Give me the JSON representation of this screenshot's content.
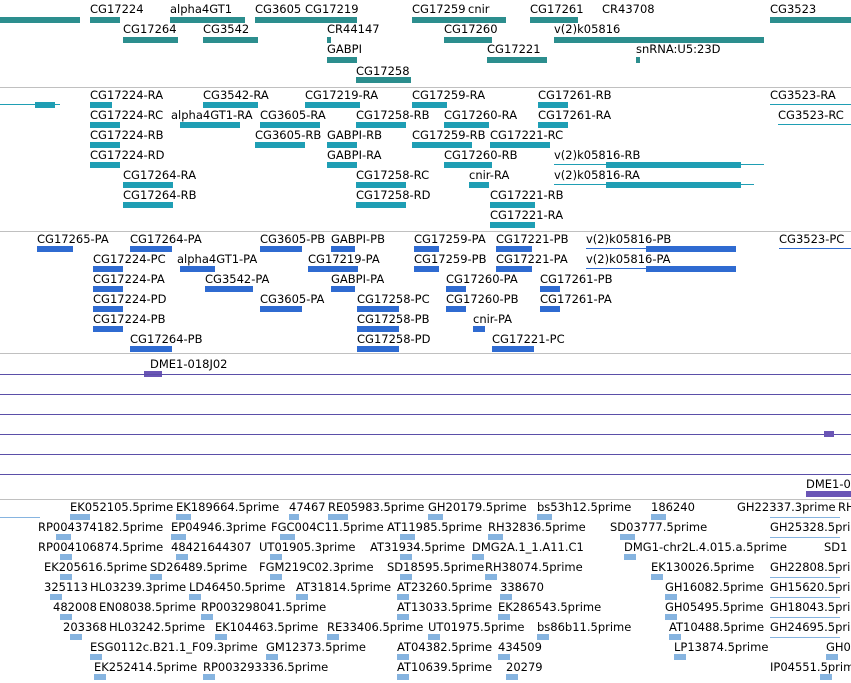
{
  "colors": {
    "gene": "#2c8e8e",
    "transcript": "#1f9eb4",
    "protein": "#2f6bd1",
    "clone": "#6a55b5",
    "est": "#86b4e0"
  },
  "gene_track": {
    "labels": [
      "CG17224",
      "alpha4GT1",
      "CG3605",
      "CG17219",
      "CG17259",
      "cnir",
      "CG17261",
      "CR43708",
      "CG3523",
      "CG17264",
      "CG3542",
      "CR44147",
      "CG17260",
      "v(2)k05816",
      "GABPI",
      "CG17221",
      "snRNA:U5:23D",
      "CG17258"
    ]
  },
  "transcript_track": {
    "labels": [
      "CG17224-RA",
      "CG3542-RA",
      "CG17219-RA",
      "CG17259-RA",
      "CG17261-RB",
      "CG3523-RA",
      "CG17224-RC",
      "alpha4GT1-RA",
      "CG3605-RA",
      "CG17258-RB",
      "CG17260-RA",
      "CG17261-RA",
      "CG3523-RC",
      "CG17224-RB",
      "CG3605-RB",
      "GABPI-RB",
      "CG17259-RB",
      "CG17221-RC",
      "CG17224-RD",
      "GABPI-RA",
      "CG17260-RB",
      "v(2)k05816-RB",
      "CG17264-RA",
      "CG17258-RC",
      "cnir-RA",
      "v(2)k05816-RA",
      "CG17264-RB",
      "CG17258-RD",
      "CG17221-RB",
      "CG17221-RA"
    ]
  },
  "protein_track": {
    "labels": [
      "CG17265-PA",
      "CG17264-PA",
      "CG3605-PB",
      "GABPI-PB",
      "CG17259-PA",
      "CG17221-PB",
      "v(2)k05816-PB",
      "CG3523-PC",
      "CG17224-PC",
      "alpha4GT1-PA",
      "CG17219-PA",
      "CG17259-PB",
      "CG17221-PA",
      "v(2)k05816-PA",
      "CG17224-PA",
      "CG3542-PA",
      "GABPI-PA",
      "CG17260-PA",
      "CG17261-PB",
      "CG17224-PD",
      "CG3605-PA",
      "CG17258-PC",
      "CG17260-PB",
      "CG17261-PA",
      "CG17224-PB",
      "CG17258-PB",
      "cnir-PA",
      "CG17264-PB",
      "CG17258-PD",
      "CG17221-PC"
    ]
  },
  "clone_track": {
    "labels": [
      "DME1-018J02",
      "DME1-0"
    ]
  },
  "est_track": {
    "labels": [
      "EK052105.5prime",
      "EK189664.5prime",
      "47467",
      "RE05983.5prime",
      "GH20179.5prime",
      "bs53h12.5prime",
      "186240",
      "GH22337.3prime",
      "RH",
      "RP004374182.5prime",
      "EP04946.3prime",
      "FGC004C11.5prime",
      "AT11985.5prime",
      "RH32836.5prime",
      "SD03777.5prime",
      "GH25328.5prime",
      "RP004106874.5prime",
      "48421644307",
      "UT01905.3prime",
      "AT31934.5prime",
      "DMG2A.1_1.A11.C1",
      "DMG1-chr2L.4.015.a.5prime",
      "SD1",
      "EK205616.5prime",
      "SD26489.5prime",
      "FGM219C02.3prime",
      "SD18595.5prime",
      "RH38074.5prime",
      "EK130026.5prime",
      "GH22808.5prime",
      "325113",
      "HL03239.3prime",
      "LD46450.5prime",
      "AT31814.5prime",
      "AT23260.5prime",
      "338670",
      "GH16082.5prime",
      "GH15620.5prime",
      "482008",
      "EN08038.5prime",
      "RP003298041.5prime",
      "AT13033.5prime",
      "EK286543.5prime",
      "GH05495.5prime",
      "GH18043.5prime",
      "203368",
      "HL03242.5prime",
      "EK104463.5prime",
      "RE33406.5prime",
      "UT01975.5prime",
      "bs86b11.5prime",
      "AT10488.5prime",
      "GH24695.5prime",
      "ESG0112c.B21.1_F09.3prime",
      "GM12373.5prime",
      "AT04382.5prime",
      "434509",
      "LP13874.5prime",
      "GH0",
      "EK252414.5prime",
      "RP003293336.5prime",
      "AT10639.5prime",
      "20279",
      "IP04551.5prime"
    ]
  }
}
